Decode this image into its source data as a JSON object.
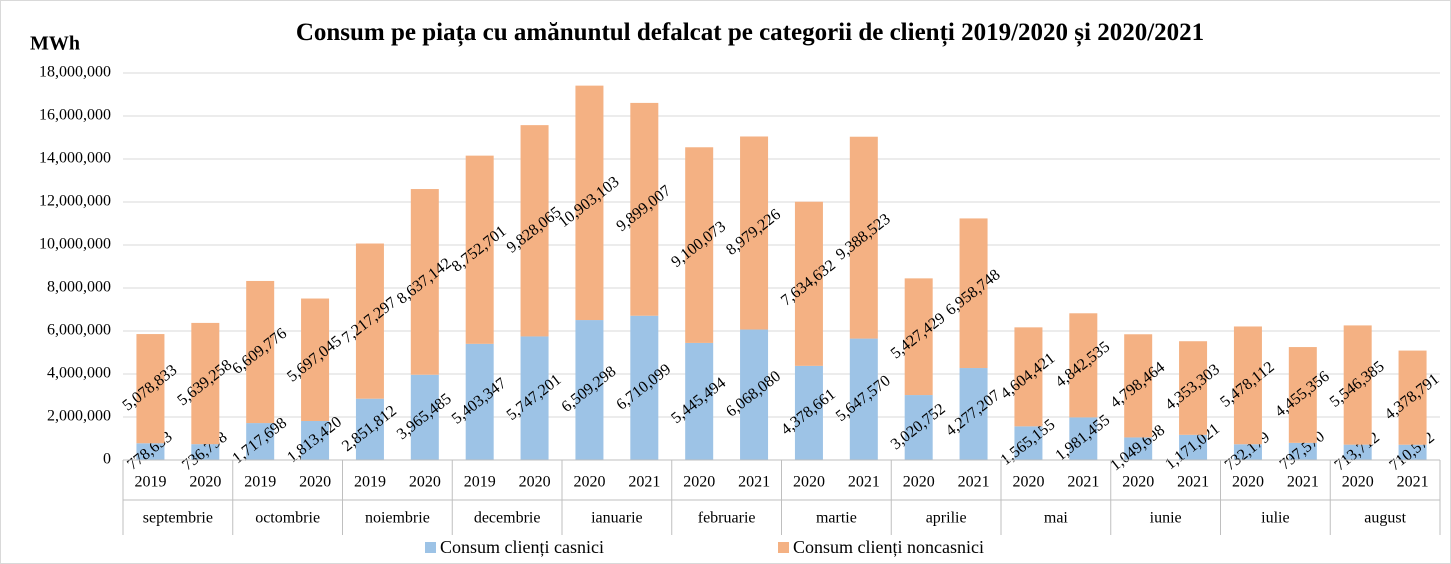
{
  "chart_data": {
    "type": "stacked-bar",
    "title": "Consum pe piața cu amănuntul defalcat pe categorii de clienți 2019/2020 și 2020/2021",
    "y_label": "MWh",
    "groups": [
      "septembrie",
      "octombrie",
      "noiembrie",
      "decembrie",
      "ianuarie",
      "februarie",
      "martie",
      "aprilie",
      "mai",
      "iunie",
      "iulie",
      "august"
    ],
    "categories": [
      "2019",
      "2020",
      "2019",
      "2020",
      "2019",
      "2020",
      "2019",
      "2020",
      "2020",
      "2021",
      "2020",
      "2021",
      "2020",
      "2021",
      "2020",
      "2021",
      "2020",
      "2021",
      "2020",
      "2021",
      "2020",
      "2021",
      "2020",
      "2021"
    ],
    "series": [
      {
        "name": "Consum clienți casnici",
        "color": "#9dc3e6",
        "values": [
          778653,
          736798,
          1717698,
          1813420,
          2851812,
          3965485,
          5403347,
          5747201,
          6509298,
          6710099,
          5445494,
          6068080,
          4378661,
          5647570,
          3020752,
          4277207,
          1565155,
          1981455,
          1049698,
          1171021,
          732179,
          797570,
          713712,
          710572
        ],
        "value_labels": [
          "778,653",
          "736,798",
          "1,717,698",
          "1,813,420",
          "2,851,812",
          "3,965,485",
          "5,403,347",
          "5,747,201",
          "6,509,298",
          "6,710,099",
          "5,445,494",
          "6,068,080",
          "4,378,661",
          "5,647,570",
          "3,020,752",
          "4,277,207",
          "1,565,155",
          "1,981,455",
          "1,049,698",
          "1,171,021",
          "732,179",
          "797,570",
          "713,712",
          "710,572"
        ]
      },
      {
        "name": "Consum clienți noncasnici",
        "color": "#f4b183",
        "values": [
          5078833,
          5639258,
          6609776,
          5697045,
          7217297,
          8637142,
          8752701,
          9828065,
          10903103,
          9899007,
          9100073,
          8979226,
          7634632,
          9388523,
          5427429,
          6958748,
          4604421,
          4842535,
          4798464,
          4353303,
          5478112,
          4455356,
          5546385,
          4378791
        ],
        "value_labels": [
          "5,078,833",
          "5,639,258",
          "6,609,776",
          "5,697,045",
          "7,217,297",
          "8,637,142",
          "8,752,701",
          "9,828,065",
          "10,903,103",
          "9,899,007",
          "9,100,073",
          "8,979,226",
          "7,634,632",
          "9,388,523",
          "5,427,429",
          "6,958,748",
          "4,604,421",
          "4,842,535",
          "4,798,464",
          "4,353,303",
          "5,478,112",
          "4,455,356",
          "5,546,385",
          "4,378,791"
        ]
      }
    ],
    "ylim": [
      0,
      18000000
    ],
    "yticks": [
      0,
      {
        "value": 2000000,
        "label": "2,000,000"
      },
      {
        "value": 4000000,
        "label": "4,000,000"
      },
      {
        "value": 6000000,
        "label": "6,000,000"
      },
      {
        "value": 8000000,
        "label": "8,000,000"
      },
      {
        "value": 10000000,
        "label": "10,000,000"
      },
      {
        "value": 12000000,
        "label": "12,000,000"
      },
      {
        "value": 14000000,
        "label": "14,000,000"
      },
      {
        "value": 16000000,
        "label": "16,000,000"
      },
      {
        "value": 18000000,
        "label": "18,000,000"
      }
    ],
    "grid": true
  }
}
